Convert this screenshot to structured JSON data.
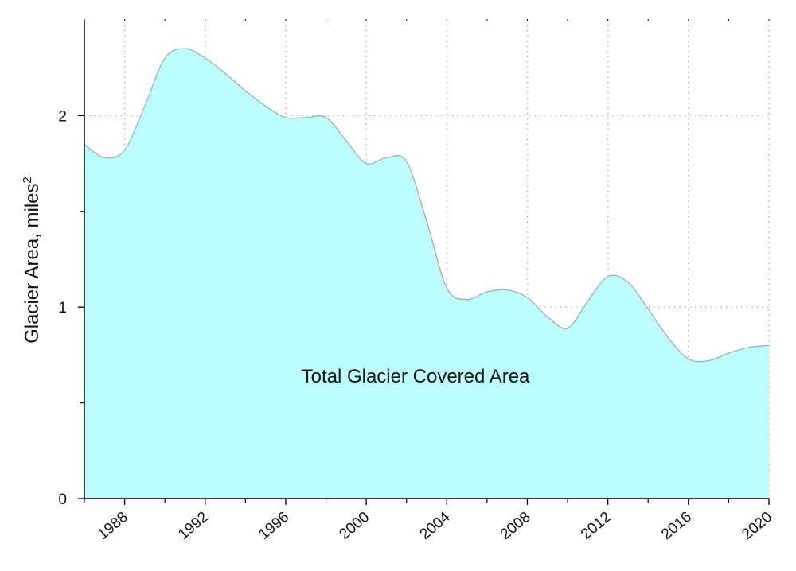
{
  "chart_data": {
    "type": "area",
    "title": "",
    "xlabel": "",
    "ylabel": "Glacier Area, miles",
    "ylabel_superscript": "2",
    "annotation": "Total Glacier Covered Area",
    "xlim": [
      1986,
      2020
    ],
    "ylim": [
      0,
      2.5
    ],
    "x_ticks": [
      1988,
      1992,
      1996,
      2000,
      2004,
      2008,
      2012,
      2016,
      2020
    ],
    "x_minor_ticks": [
      1986,
      1990,
      1994,
      1998,
      2002,
      2006,
      2010,
      2014,
      2018
    ],
    "y_ticks": [
      0,
      1,
      2
    ],
    "y_minor_ticks": [
      0.5,
      1.5
    ],
    "grid": true,
    "legend": "none",
    "colors": {
      "fill": "#bbfcfc",
      "line": "#aaaaaa",
      "grid": "#b0b0b0",
      "axis": "#000000"
    },
    "series": [
      {
        "x": [
          1986,
          1987,
          1988,
          1989,
          1990,
          1991,
          1992,
          1993,
          1994,
          1995,
          1996,
          1997,
          1998,
          1999,
          2000,
          2001,
          2002,
          2003,
          2004,
          2005,
          2006,
          2007,
          2008,
          2009,
          2010,
          2011,
          2012,
          2013,
          2014,
          2015,
          2016,
          2017,
          2018,
          2019,
          2020
        ],
        "values": [
          1.85,
          1.78,
          1.82,
          2.05,
          2.3,
          2.35,
          2.3,
          2.22,
          2.13,
          2.05,
          1.99,
          1.99,
          1.99,
          1.87,
          1.75,
          1.78,
          1.76,
          1.45,
          1.1,
          1.04,
          1.08,
          1.09,
          1.05,
          0.95,
          0.89,
          1.03,
          1.16,
          1.13,
          0.99,
          0.84,
          0.73,
          0.72,
          0.76,
          0.79,
          0.8
        ]
      }
    ]
  }
}
